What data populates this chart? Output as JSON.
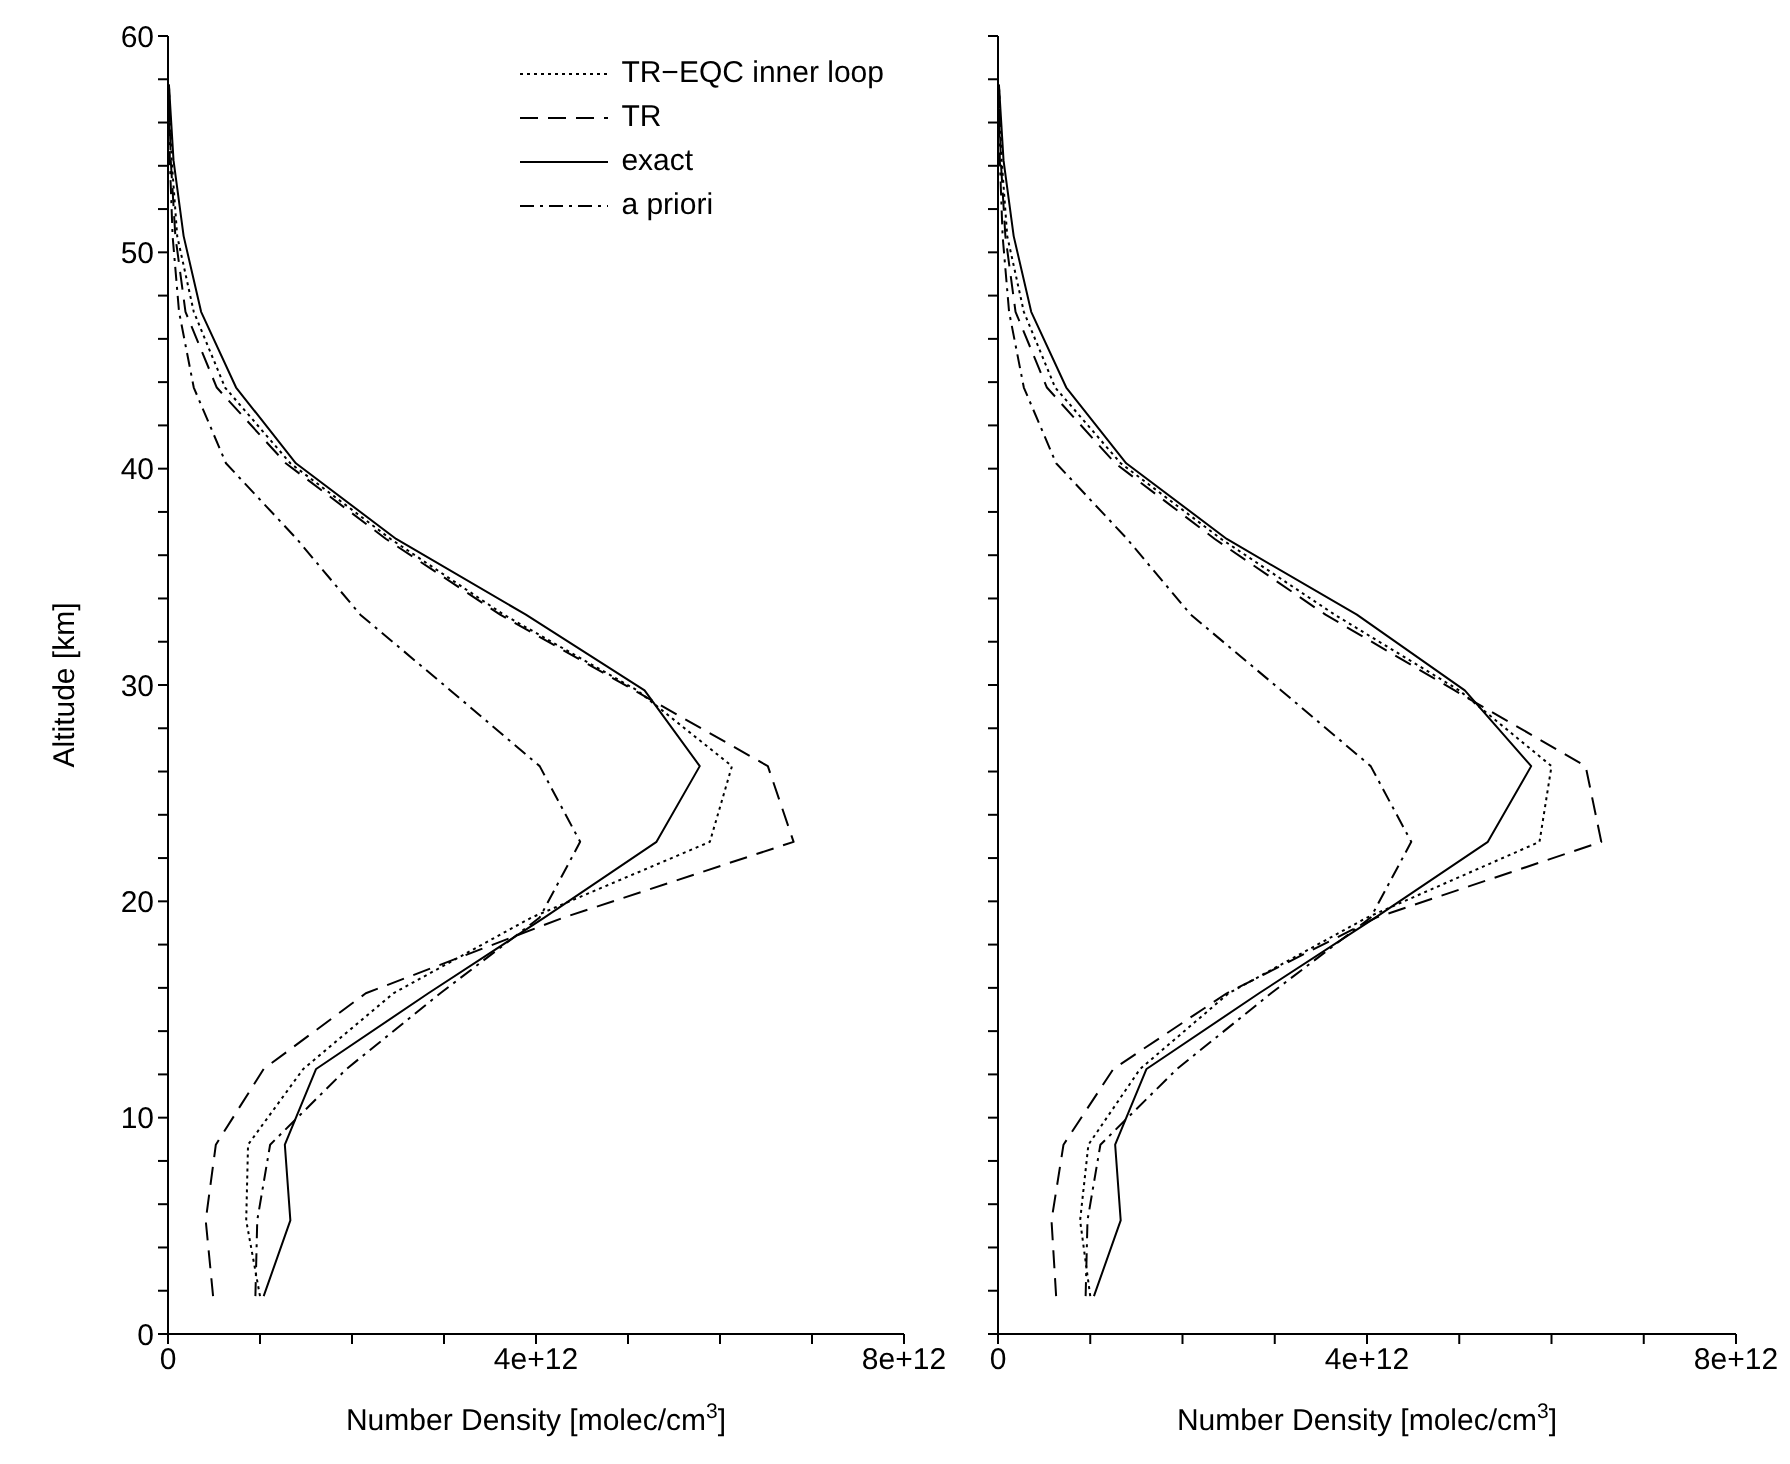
{
  "chart_data": [
    {
      "type": "line",
      "xlabel": "Number Density [molec/cm$^{3}$]",
      "ylabel": "Altitude [km]",
      "xlim": [
        0,
        8000000000000.0
      ],
      "xticks": [
        0,
        {
          "value": 1000000000000.0,
          "label": null
        },
        {
          "value": 2000000000000.0,
          "label": null
        },
        {
          "value": 3000000000000.0,
          "label": null
        },
        {
          "value": 4000000000000.0,
          "label": "4e+12"
        },
        {
          "value": 5000000000000.0,
          "label": null
        },
        {
          "value": 6000000000000.0,
          "label": null
        },
        {
          "value": 7000000000000.0,
          "label": null
        },
        {
          "value": 8000000000000.0,
          "label": "8e+12"
        }
      ],
      "ylim": [
        0,
        60
      ],
      "yticks": [
        0,
        {
          "value": 2,
          "label": null
        },
        {
          "value": 4,
          "label": null
        },
        {
          "value": 6,
          "label": null
        },
        {
          "value": 8,
          "label": null
        },
        10,
        {
          "value": 12,
          "label": null
        },
        {
          "value": 14,
          "label": null
        },
        {
          "value": 16,
          "label": null
        },
        {
          "value": 18,
          "label": null
        },
        20,
        {
          "value": 22,
          "label": null
        },
        {
          "value": 24,
          "label": null
        },
        {
          "value": 26,
          "label": null
        },
        {
          "value": 28,
          "label": null
        },
        30,
        {
          "value": 32,
          "label": null
        },
        {
          "value": 34,
          "label": null
        },
        {
          "value": 36,
          "label": null
        },
        {
          "value": 38,
          "label": null
        },
        40,
        {
          "value": 42,
          "label": null
        },
        {
          "value": 44,
          "label": null
        },
        {
          "value": 46,
          "label": null
        },
        {
          "value": 48,
          "label": null
        },
        50,
        {
          "value": 52,
          "label": null
        },
        {
          "value": 54,
          "label": null
        },
        {
          "value": 56,
          "label": null
        },
        {
          "value": 58,
          "label": null
        },
        60
      ],
      "grid": false,
      "legend": "top right",
      "marker": "none",
      "series": [
        {
          "name": "TR−EQC inner loop",
          "color": "#000000",
          "line_style": "dotted",
          "x": [
            1000000000000.0,
            850000000000.0,
            870000000000.0,
            1470000000000.0,
            2450000000000.0,
            3950000000000.0,
            5890000000000.0,
            6130000000000.0,
            5100000000000.0,
            3650000000000.0,
            2420000000000.0,
            1330000000000.0,
            620000000000.0,
            280000000000.0,
            100000000000.0,
            40000000000.0,
            10000000000.0
          ],
          "values": [
            1.75,
            5.25,
            8.75,
            12.25,
            15.75,
            19.25,
            22.75,
            26.25,
            29.75,
            33.25,
            36.75,
            40.25,
            43.75,
            47.25,
            50.75,
            54.25,
            57.75
          ]
        },
        {
          "name": "TR",
          "color": "#000000",
          "line_style": "dashed",
          "x": [
            490000000000.0,
            410000000000.0,
            520000000000.0,
            1040000000000.0,
            2150000000000.0,
            4300000000000.0,
            6800000000000.0,
            6520000000000.0,
            5070000000000.0,
            3610000000000.0,
            2370000000000.0,
            1280000000000.0,
            530000000000.0,
            190000000000.0,
            80000000000.0,
            30000000000.0,
            10000000000.0
          ],
          "values": [
            1.75,
            5.25,
            8.75,
            12.25,
            15.75,
            19.25,
            22.75,
            26.25,
            29.75,
            33.25,
            36.75,
            40.25,
            43.75,
            47.25,
            50.75,
            54.25,
            57.75
          ]
        },
        {
          "name": "exact",
          "color": "#000000",
          "line_style": "solid",
          "x": [
            1040000000000.0,
            1330000000000.0,
            1270000000000.0,
            1610000000000.0,
            2830000000000.0,
            4090000000000.0,
            5310000000000.0,
            5780000000000.0,
            5180000000000.0,
            3890000000000.0,
            2480000000000.0,
            1390000000000.0,
            740000000000.0,
            360000000000.0,
            170000000000.0,
            60000000000.0,
            10000000000.0
          ],
          "values": [
            1.75,
            5.25,
            8.75,
            12.25,
            15.75,
            19.25,
            22.75,
            26.25,
            29.75,
            33.25,
            36.75,
            40.25,
            43.75,
            47.25,
            50.75,
            54.25,
            57.75
          ]
        },
        {
          "name": "a priori",
          "color": "#000000",
          "line_style": "dashdot",
          "x": [
            950000000000.0,
            970000000000.0,
            1110000000000.0,
            1940000000000.0,
            2960000000000.0,
            4040000000000.0,
            4480000000000.0,
            4040000000000.0,
            3070000000000.0,
            2090000000000.0,
            1400000000000.0,
            630000000000.0,
            280000000000.0,
            120000000000.0,
            50000000000.0,
            20000000000.0,
            10000000000.0
          ],
          "values": [
            1.75,
            5.25,
            8.75,
            12.25,
            15.75,
            19.25,
            22.75,
            26.25,
            29.75,
            33.25,
            36.75,
            40.25,
            43.75,
            47.25,
            50.75,
            54.25,
            57.75
          ]
        }
      ]
    },
    {
      "type": "line",
      "xlabel": "Number Density [molec/cm$^{3}$]",
      "xlim": [
        0,
        8000000000000.0
      ],
      "xticks": [
        0,
        {
          "value": 1000000000000.0,
          "label": null
        },
        {
          "value": 2000000000000.0,
          "label": null
        },
        {
          "value": 3000000000000.0,
          "label": null
        },
        {
          "value": 4000000000000.0,
          "label": "4e+12"
        },
        {
          "value": 5000000000000.0,
          "label": null
        },
        {
          "value": 6000000000000.0,
          "label": null
        },
        {
          "value": 7000000000000.0,
          "label": null
        },
        {
          "value": 8000000000000.0,
          "label": "8e+12"
        }
      ],
      "ylim": [
        0,
        60
      ],
      "yticks": [
        0,
        {
          "value": 2,
          "label": null
        },
        {
          "value": 4,
          "label": null
        },
        {
          "value": 6,
          "label": null
        },
        {
          "value": 8,
          "label": null
        },
        10,
        {
          "value": 12,
          "label": null
        },
        {
          "value": 14,
          "label": null
        },
        {
          "value": 16,
          "label": null
        },
        {
          "value": 18,
          "label": null
        },
        20,
        {
          "value": 22,
          "label": null
        },
        {
          "value": 24,
          "label": null
        },
        {
          "value": 26,
          "label": null
        },
        {
          "value": 28,
          "label": null
        },
        30,
        {
          "value": 32,
          "label": null
        },
        {
          "value": 34,
          "label": null
        },
        {
          "value": 36,
          "label": null
        },
        {
          "value": 38,
          "label": null
        },
        40,
        {
          "value": 42,
          "label": null
        },
        {
          "value": 44,
          "label": null
        },
        {
          "value": 46,
          "label": null
        },
        {
          "value": 48,
          "label": null
        },
        50,
        {
          "value": 52,
          "label": null
        },
        {
          "value": 54,
          "label": null
        },
        {
          "value": 56,
          "label": null
        },
        {
          "value": 58,
          "label": null
        },
        60
      ],
      "grid": false,
      "tick_labels": "x",
      "marker": "none",
      "series": [
        {
          "color": "#000000",
          "line_style": "dotted",
          "x": [
            1000000000000.0,
            890000000000.0,
            980000000000.0,
            1540000000000.0,
            2500000000000.0,
            4000000000000.0,
            5870000000000.0,
            6000000000000.0,
            5000000000000.0,
            3650000000000.0,
            2420000000000.0,
            1330000000000.0,
            620000000000.0,
            280000000000.0,
            100000000000.0,
            40000000000.0,
            10000000000.0
          ],
          "values": [
            1.75,
            5.25,
            8.75,
            12.25,
            15.75,
            19.25,
            22.75,
            26.25,
            29.75,
            33.25,
            36.75,
            40.25,
            43.75,
            47.25,
            50.75,
            54.25,
            57.75
          ]
        },
        {
          "color": "#000000",
          "line_style": "dashed",
          "x": [
            630000000000.0,
            580000000000.0,
            710000000000.0,
            1250000000000.0,
            2480000000000.0,
            4100000000000.0,
            6540000000000.0,
            6370000000000.0,
            4950000000000.0,
            3550000000000.0,
            2350000000000.0,
            1270000000000.0,
            530000000000.0,
            190000000000.0,
            80000000000.0,
            30000000000.0,
            10000000000.0
          ],
          "values": [
            1.75,
            5.25,
            8.75,
            12.25,
            15.75,
            19.25,
            22.75,
            26.25,
            29.75,
            33.25,
            36.75,
            40.25,
            43.75,
            47.25,
            50.75,
            54.25,
            57.75
          ]
        },
        {
          "color": "#000000",
          "line_style": "solid",
          "x": [
            1040000000000.0,
            1330000000000.0,
            1270000000000.0,
            1610000000000.0,
            2830000000000.0,
            4090000000000.0,
            5310000000000.0,
            5780000000000.0,
            5060000000000.0,
            3890000000000.0,
            2480000000000.0,
            1390000000000.0,
            740000000000.0,
            360000000000.0,
            170000000000.0,
            60000000000.0,
            10000000000.0
          ],
          "values": [
            1.75,
            5.25,
            8.75,
            12.25,
            15.75,
            19.25,
            22.75,
            26.25,
            29.75,
            33.25,
            36.75,
            40.25,
            43.75,
            47.25,
            50.75,
            54.25,
            57.75
          ]
        },
        {
          "color": "#000000",
          "line_style": "dashdot",
          "x": [
            950000000000.0,
            970000000000.0,
            1110000000000.0,
            1940000000000.0,
            2960000000000.0,
            4040000000000.0,
            4480000000000.0,
            4040000000000.0,
            3070000000000.0,
            2090000000000.0,
            1400000000000.0,
            630000000000.0,
            280000000000.0,
            120000000000.0,
            50000000000.0,
            20000000000.0,
            10000000000.0
          ],
          "values": [
            1.75,
            5.25,
            8.75,
            12.25,
            15.75,
            19.25,
            22.75,
            26.25,
            29.75,
            33.25,
            36.75,
            40.25,
            43.75,
            47.25,
            50.75,
            54.25,
            57.75
          ]
        }
      ]
    }
  ]
}
